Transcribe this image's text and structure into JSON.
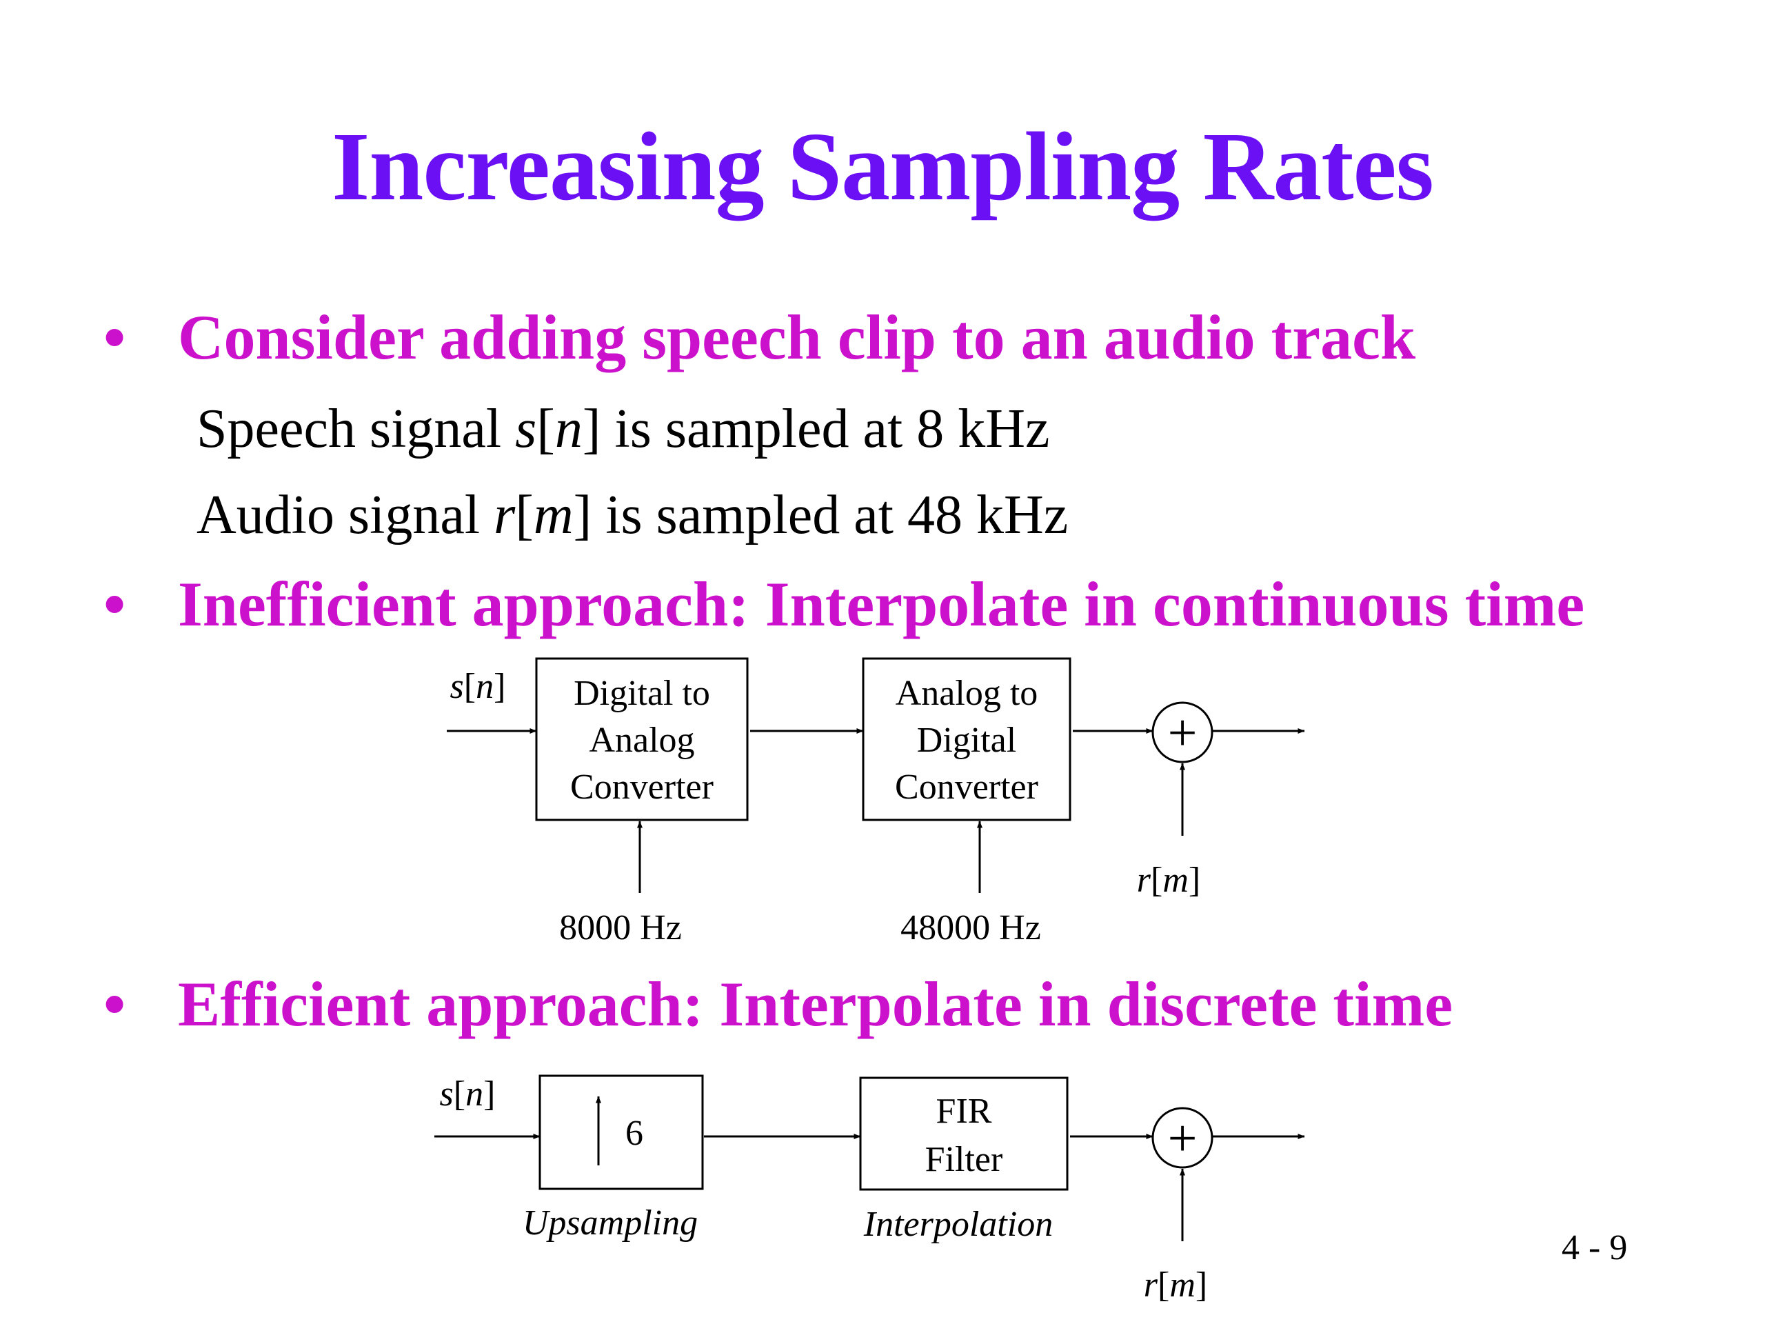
{
  "title": "Increasing Sampling Rates",
  "bullets": [
    {
      "text": "Consider adding speech clip to an audio track",
      "sub": [
        {
          "pre": "Speech signal ",
          "var": "s",
          "open": "[",
          "idx": "n",
          "close": "] is sampled at 8 kHz"
        },
        {
          "pre": "Audio signal ",
          "var": "r",
          "open": "[",
          "idx": "m",
          "close": "] is sampled at 48 kHz"
        }
      ]
    },
    {
      "text": "Inefficient approach: Interpolate in continuous time"
    },
    {
      "text": "Efficient approach: Interpolate in discrete time"
    }
  ],
  "diagram1": {
    "input": {
      "var": "s",
      "idx": "n"
    },
    "block1": [
      "Digital to",
      "Analog",
      "Converter"
    ],
    "block2": [
      "Analog to",
      "Digital",
      "Converter"
    ],
    "rate1": "8000 Hz",
    "rate2": "48000 Hz",
    "adder_symbol": "+",
    "side_input": {
      "var": "r",
      "idx": "m"
    }
  },
  "diagram2": {
    "input": {
      "var": "s",
      "idx": "n"
    },
    "upsample_factor": "6",
    "upsample_label": "Upsampling",
    "block2": [
      "FIR",
      "Filter"
    ],
    "block2_label": "Interpolation",
    "adder_symbol": "+",
    "side_input": {
      "var": "r",
      "idx": "m"
    }
  },
  "page_number": "4 - 9"
}
